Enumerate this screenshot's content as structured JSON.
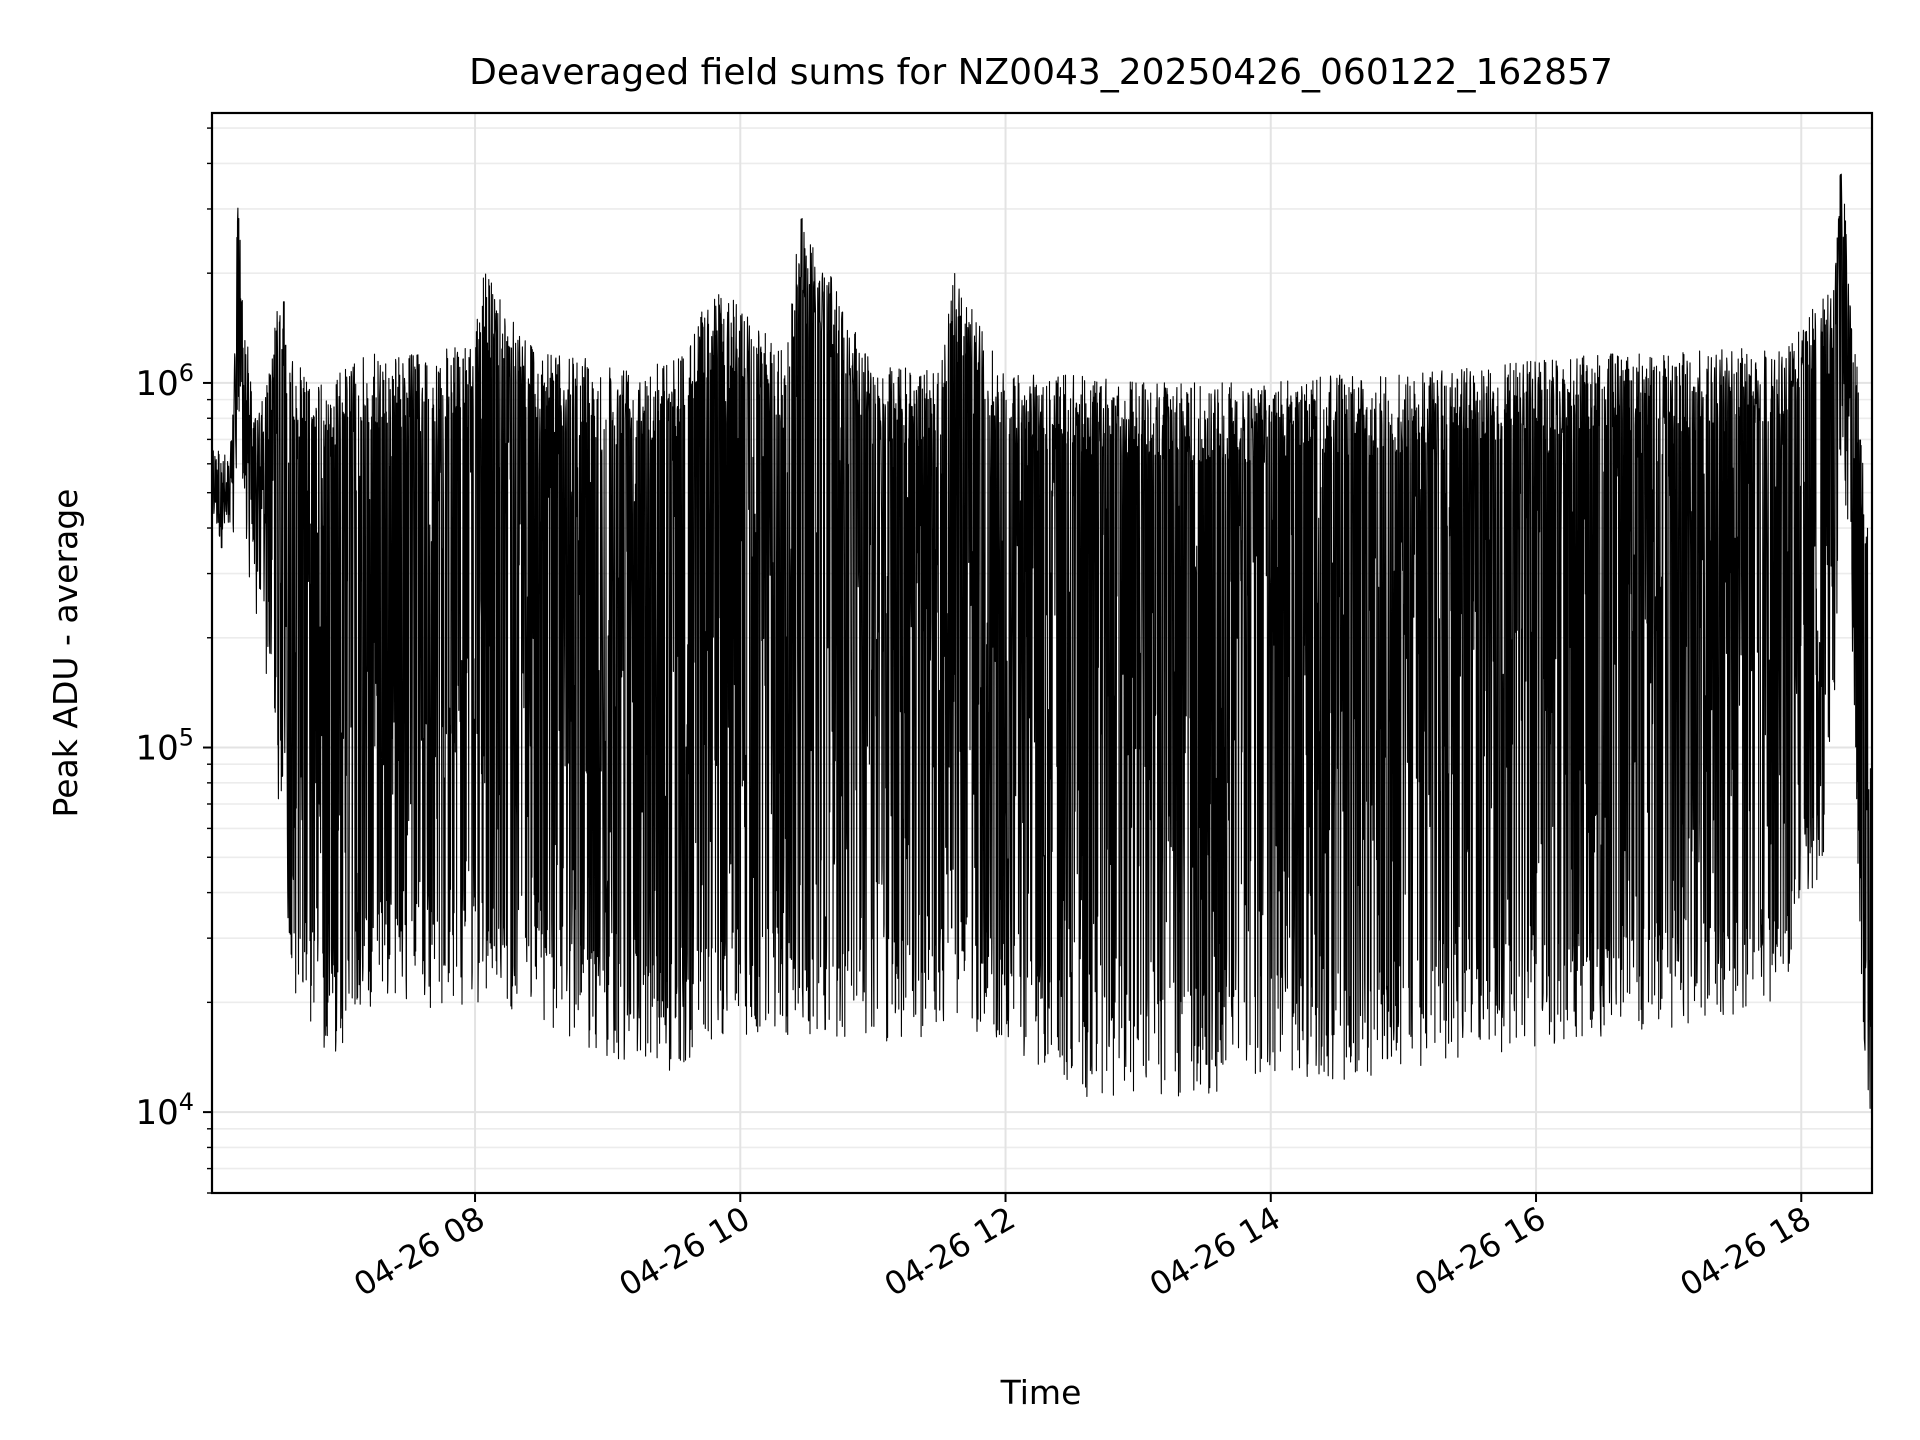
{
  "chart_data": {
    "type": "line",
    "title": "Deaveraged field sums for NZ0043_20250426_060122_162857",
    "xlabel": "Time",
    "ylabel": "Peak ADU - average",
    "yscale": "log",
    "ylim": [
      6000,
      5500000
    ],
    "xlim": [
      "2025-04-26 06:01",
      "2025-04-26 18:32"
    ],
    "grid": true,
    "x_ticks": [
      "04-26 08",
      "04-26 10",
      "04-26 12",
      "04-26 14",
      "04-26 16",
      "04-26 18"
    ],
    "y_ticks": [
      {
        "value": 10000,
        "base": "10",
        "exp": "4"
      },
      {
        "value": 100000,
        "base": "10",
        "exp": "5"
      },
      {
        "value": 1000000,
        "base": "10",
        "exp": "6"
      }
    ],
    "line_color": "#000000",
    "series": [
      {
        "x": [
          "2025-04-26 06:01",
          "2025-04-26 06:05",
          "2025-04-26 06:10",
          "2025-04-26 06:13",
          "2025-04-26 06:15",
          "2025-04-26 06:17",
          "2025-04-26 06:20",
          "2025-04-26 06:24",
          "2025-04-26 06:28",
          "2025-04-26 06:32",
          "2025-04-26 06:36",
          "2025-04-26 06:40",
          "2025-04-26 06:45",
          "2025-04-26 06:50",
          "2025-04-26 06:55",
          "2025-04-26 07:00",
          "2025-04-26 07:10",
          "2025-04-26 07:20",
          "2025-04-26 07:30",
          "2025-04-26 07:45",
          "2025-04-26 08:00",
          "2025-04-26 08:03",
          "2025-04-26 08:30",
          "2025-04-26 09:00",
          "2025-04-26 09:30",
          "2025-04-26 09:50",
          "2025-04-26 10:20",
          "2025-04-26 10:27",
          "2025-04-26 11:00",
          "2025-04-26 11:30",
          "2025-04-26 11:37",
          "2025-04-26 12:00",
          "2025-04-26 12:30",
          "2025-04-26 13:00",
          "2025-04-26 13:30",
          "2025-04-26 14:00",
          "2025-04-26 14:30",
          "2025-04-26 15:00",
          "2025-04-26 15:30",
          "2025-04-26 16:00",
          "2025-04-26 16:30",
          "2025-04-26 17:00",
          "2025-04-26 17:30",
          "2025-04-26 17:50",
          "2025-04-26 18:00",
          "2025-04-26 18:10",
          "2025-04-26 18:15",
          "2025-04-26 18:18",
          "2025-04-26 18:22",
          "2025-04-26 18:26",
          "2025-04-26 18:30",
          "2025-04-26 18:32"
        ],
        "upper": [
          800000,
          600000,
          700000,
          3800000,
          1600000,
          1400000,
          800000,
          900000,
          1200000,
          2000000,
          1300000,
          1100000,
          1100000,
          1000000,
          1000000,
          1100000,
          1200000,
          1200000,
          1200000,
          1250000,
          1250000,
          2100000,
          1200000,
          1150000,
          1150000,
          1900000,
          1200000,
          3000000,
          1100000,
          1100000,
          2000000,
          1050000,
          1050000,
          1000000,
          1000000,
          1000000,
          1050000,
          1050000,
          1100000,
          1150000,
          1200000,
          1200000,
          1250000,
          1300000,
          1500000,
          1700000,
          1800000,
          4200000,
          2000000,
          1000000,
          400000,
          50000
        ],
        "lower": [
          400000,
          350000,
          300000,
          500000,
          500000,
          300000,
          230000,
          180000,
          120000,
          60000,
          30000,
          18000,
          16000,
          15000,
          14000,
          15000,
          18000,
          20000,
          20000,
          19000,
          20000,
          20000,
          18000,
          13000,
          13000,
          16000,
          16000,
          16000,
          15000,
          16000,
          18000,
          15000,
          11000,
          11000,
          11000,
          13000,
          12000,
          13000,
          14000,
          15000,
          16000,
          17000,
          18000,
          20000,
          30000,
          50000,
          100000,
          500000,
          300000,
          30000,
          11000,
          8000
        ],
        "avg": [
          550000,
          450000,
          500000,
          1200000,
          900000,
          650000,
          500000,
          450000,
          400000,
          300000,
          200000,
          180000,
          170000,
          150000,
          150000,
          160000,
          180000,
          200000,
          200000,
          200000,
          200000,
          200000,
          190000,
          160000,
          170000,
          180000,
          180000,
          180000,
          170000,
          170000,
          180000,
          160000,
          150000,
          150000,
          150000,
          160000,
          160000,
          160000,
          170000,
          180000,
          190000,
          200000,
          210000,
          230000,
          300000,
          450000,
          600000,
          1500000,
          800000,
          100000,
          25000,
          10000
        ]
      }
    ]
  }
}
